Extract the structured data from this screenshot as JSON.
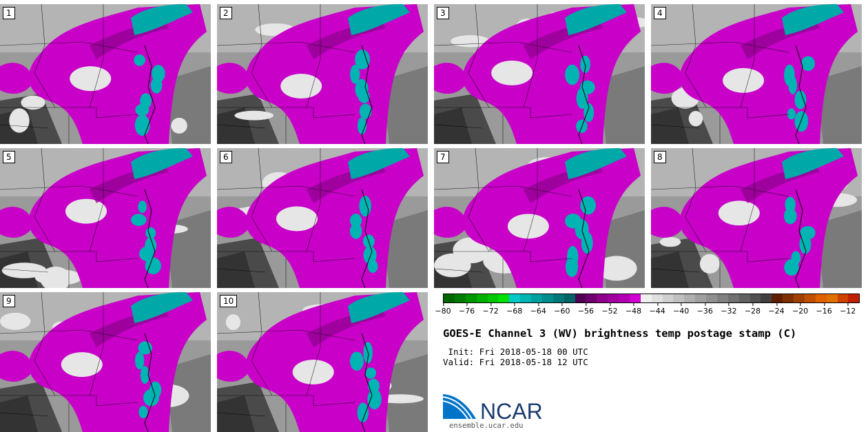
{
  "panels": [
    {
      "label": "1"
    },
    {
      "label": "2"
    },
    {
      "label": "3"
    },
    {
      "label": "4"
    },
    {
      "label": "5"
    },
    {
      "label": "6"
    },
    {
      "label": "7"
    },
    {
      "label": "8"
    },
    {
      "label": "9"
    },
    {
      "label": "10"
    }
  ],
  "colorbar": {
    "tick_labels": [
      "−80",
      "−76",
      "−72",
      "−68",
      "−64",
      "−60",
      "−56",
      "−52",
      "−48",
      "−44",
      "−40",
      "−36",
      "−32",
      "−28",
      "−24",
      "−20",
      "−16",
      "−12"
    ],
    "tick_values": [
      -80,
      -76,
      -72,
      -68,
      -64,
      -60,
      -56,
      -52,
      -48,
      -44,
      -40,
      -36,
      -32,
      -28,
      -24,
      -20,
      -16,
      -12
    ],
    "range": [
      -80,
      -10
    ],
    "colors": [
      "#006400",
      "#007d00",
      "#009600",
      "#00b000",
      "#00c800",
      "#00e000",
      "#00c8c8",
      "#00b4b4",
      "#00a0a0",
      "#008c8c",
      "#007878",
      "#006464",
      "#500050",
      "#6e006e",
      "#8c008c",
      "#a000a0",
      "#b400b4",
      "#d200d2",
      "#f0f0f0",
      "#e0e0e0",
      "#d0d0d0",
      "#c0c0c0",
      "#b0b0b0",
      "#a0a0a0",
      "#909090",
      "#808080",
      "#707070",
      "#606060",
      "#505050",
      "#404040",
      "#602000",
      "#803000",
      "#a04000",
      "#c05000",
      "#e06000",
      "#e07000",
      "#d04000",
      "#c02000"
    ]
  },
  "title": "GOES-E Channel 3 (WV) brightness temp postage stamp (C)",
  "init": " Init: Fri 2018-05-18 00 UTC",
  "valid": "Valid: Fri 2018-05-18 12 UTC",
  "logo": {
    "text": "NCAR",
    "url": "ensemble.ucar.edu",
    "blue": "#0074c8"
  }
}
